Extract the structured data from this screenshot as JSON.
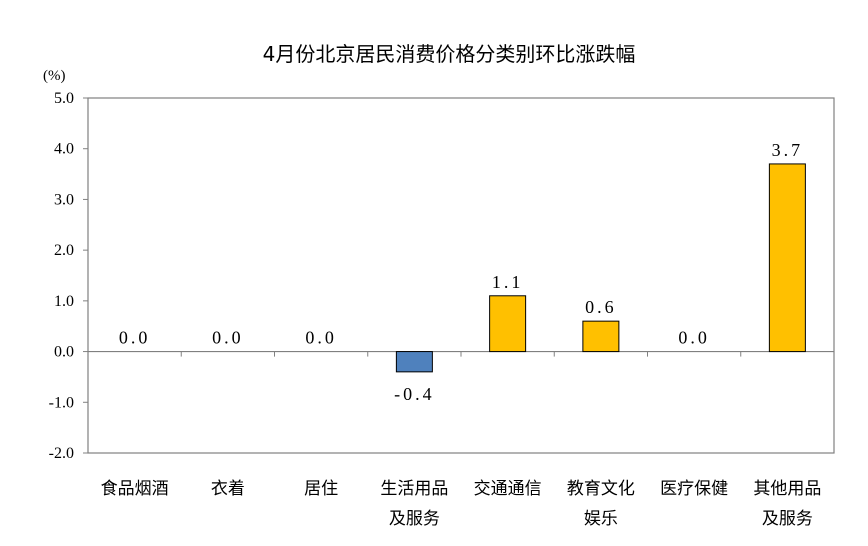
{
  "chart_data": {
    "type": "bar",
    "title": "4月份北京居民消费价格分类别环比涨跌幅",
    "unit_label": "(%)",
    "categories": [
      [
        "食品烟酒"
      ],
      [
        "衣着"
      ],
      [
        "居住"
      ],
      [
        "生活用品",
        "及服务"
      ],
      [
        "交通通信"
      ],
      [
        "教育文化",
        "娱乐"
      ],
      [
        "医疗保健"
      ],
      [
        "其他用品",
        "及服务"
      ]
    ],
    "values": [
      0.0,
      0.0,
      0.0,
      -0.4,
      1.1,
      0.6,
      0.0,
      3.7
    ],
    "data_labels": [
      "0.0",
      "0.0",
      "0.0",
      "-0.4",
      "1.1",
      "0.6",
      "0.0",
      "3.7"
    ],
    "ylim": [
      -2.0,
      5.0
    ],
    "yticks": [
      "5.0",
      "4.0",
      "3.0",
      "2.0",
      "1.0",
      "0.0",
      "-1.0",
      "-2.0"
    ],
    "ytick_values": [
      5,
      4,
      3,
      2,
      1,
      0,
      -1,
      -2
    ],
    "grid": false,
    "colors": {
      "positive": "#FFC000",
      "negative": "#4F81BD",
      "bar_border": "#000000",
      "axis": "#808080"
    }
  }
}
